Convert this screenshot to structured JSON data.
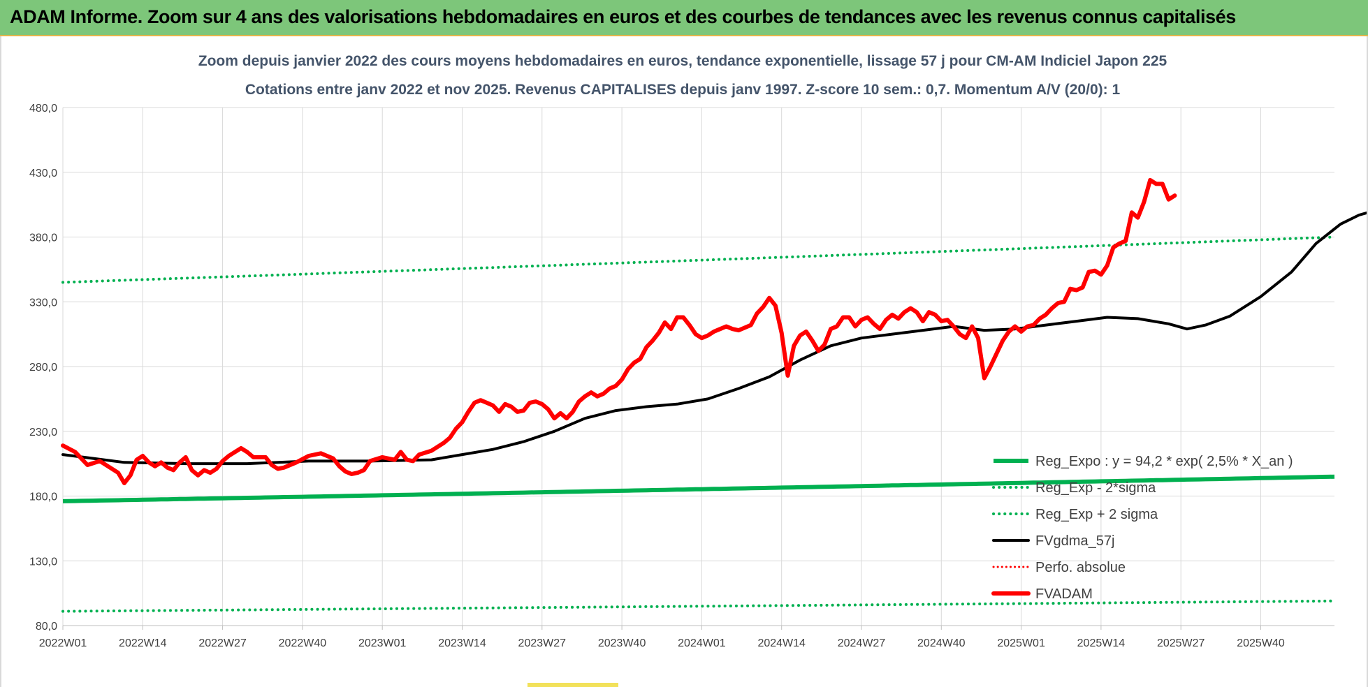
{
  "header": {
    "title": "ADAM Informe. Zoom sur 4 ans des valorisations hebdomadaires en euros et des courbes de tendances avec les revenus connus capitalisés"
  },
  "colors": {
    "banner": "#7dc67a",
    "reg_expo": "#00b050",
    "reg_sigma": "#00b050",
    "fvgdma": "#000000",
    "perfo": "#ff0000",
    "fvadam": "#ff0000",
    "title_text": "#44546a"
  },
  "chart_data": {
    "type": "line",
    "title": "Zoom depuis janvier 2022 des cours moyens hebdomadaires en euros, tendance exponentielle, lissage 57 j pour CM-AM Indiciel Japon 225",
    "subtitle": "Cotations entre janv 2022 et nov 2025. Revenus CAPITALISES depuis janv 1997. Z-score 10 sem.: 0,7. Momentum A/V (20/0): 1",
    "xlabel": "",
    "ylabel": "",
    "ylim": [
      80,
      480
    ],
    "y_ticks": [
      "80,0",
      "130,0",
      "180,0",
      "230,0",
      "280,0",
      "330,0",
      "380,0",
      "430,0",
      "480,0"
    ],
    "x_ticks": [
      "2022W01",
      "2022W14",
      "2022W27",
      "2022W40",
      "2023W01",
      "2023W14",
      "2023W27",
      "2023W40",
      "2024W01",
      "2024W14",
      "2024W27",
      "2024W40",
      "2025W01",
      "2025W14",
      "2025W27",
      "2025W40"
    ],
    "x_range_weeks": [
      0,
      207
    ],
    "grid": true,
    "legend_position": "bottom-right",
    "series": [
      {
        "name": "Reg_Expo : y = 94,2 * exp( 2,5% *  X_an )",
        "style": "solid",
        "color": "#00b050",
        "points": [
          [
            0,
            176
          ],
          [
            207,
            195
          ]
        ]
      },
      {
        "name": "Reg_Exp - 2*sigma",
        "style": "dotted",
        "color": "#00b050",
        "points": [
          [
            0,
            91
          ],
          [
            207,
            99
          ]
        ]
      },
      {
        "name": "Reg_Exp + 2 sigma",
        "style": "dotted",
        "color": "#00b050",
        "points": [
          [
            0,
            345
          ],
          [
            207,
            380
          ]
        ]
      },
      {
        "name": "FVgdma_57j",
        "style": "solid",
        "color": "#000000",
        "points": [
          [
            0,
            212
          ],
          [
            10,
            206
          ],
          [
            20,
            205
          ],
          [
            30,
            205
          ],
          [
            40,
            207
          ],
          [
            50,
            207
          ],
          [
            60,
            208
          ],
          [
            65,
            212
          ],
          [
            70,
            216
          ],
          [
            75,
            222
          ],
          [
            80,
            230
          ],
          [
            85,
            240
          ],
          [
            90,
            246
          ],
          [
            95,
            249
          ],
          [
            100,
            251
          ],
          [
            105,
            255
          ],
          [
            110,
            263
          ],
          [
            115,
            272
          ],
          [
            120,
            285
          ],
          [
            125,
            296
          ],
          [
            130,
            302
          ],
          [
            135,
            305
          ],
          [
            140,
            308
          ],
          [
            145,
            311
          ],
          [
            150,
            308
          ],
          [
            155,
            309
          ],
          [
            160,
            312
          ],
          [
            165,
            315
          ],
          [
            170,
            318
          ],
          [
            175,
            317
          ],
          [
            180,
            313
          ],
          [
            183,
            309
          ],
          [
            186,
            312
          ],
          [
            190,
            319
          ],
          [
            195,
            334
          ],
          [
            200,
            353
          ],
          [
            204,
            375
          ],
          [
            208,
            390
          ],
          [
            211,
            397
          ],
          [
            214,
            401
          ]
        ]
      },
      {
        "name": "Perfo. absolue",
        "style": "dotted",
        "color": "#ff0000",
        "points": []
      },
      {
        "name": "FVADAM",
        "style": "solid",
        "color": "#ff0000",
        "points": [
          [
            0,
            219
          ],
          [
            2,
            214
          ],
          [
            4,
            204
          ],
          [
            6,
            207
          ],
          [
            8,
            201
          ],
          [
            9,
            198
          ],
          [
            10,
            190
          ],
          [
            11,
            196
          ],
          [
            12,
            208
          ],
          [
            13,
            211
          ],
          [
            14,
            206
          ],
          [
            15,
            203
          ],
          [
            16,
            206
          ],
          [
            17,
            202
          ],
          [
            18,
            200
          ],
          [
            19,
            206
          ],
          [
            20,
            210
          ],
          [
            21,
            200
          ],
          [
            22,
            196
          ],
          [
            23,
            200
          ],
          [
            24,
            198
          ],
          [
            25,
            201
          ],
          [
            26,
            207
          ],
          [
            27,
            211
          ],
          [
            29,
            217
          ],
          [
            30,
            214
          ],
          [
            31,
            210
          ],
          [
            33,
            210
          ],
          [
            34,
            204
          ],
          [
            35,
            201
          ],
          [
            36,
            202
          ],
          [
            38,
            206
          ],
          [
            40,
            211
          ],
          [
            42,
            213
          ],
          [
            43,
            211
          ],
          [
            44,
            209
          ],
          [
            45,
            203
          ],
          [
            46,
            199
          ],
          [
            47,
            197
          ],
          [
            48,
            198
          ],
          [
            49,
            200
          ],
          [
            50,
            207
          ],
          [
            52,
            210
          ],
          [
            54,
            208
          ],
          [
            55,
            214
          ],
          [
            56,
            208
          ],
          [
            57,
            207
          ],
          [
            58,
            212
          ],
          [
            60,
            215
          ],
          [
            61,
            218
          ],
          [
            62,
            221
          ],
          [
            63,
            225
          ],
          [
            64,
            232
          ],
          [
            65,
            237
          ],
          [
            66,
            245
          ],
          [
            67,
            252
          ],
          [
            68,
            254
          ],
          [
            69,
            252
          ],
          [
            70,
            250
          ],
          [
            71,
            245
          ],
          [
            72,
            251
          ],
          [
            73,
            249
          ],
          [
            74,
            245
          ],
          [
            75,
            246
          ],
          [
            76,
            252
          ],
          [
            77,
            253
          ],
          [
            78,
            251
          ],
          [
            79,
            247
          ],
          [
            80,
            240
          ],
          [
            81,
            244
          ],
          [
            82,
            240
          ],
          [
            83,
            245
          ],
          [
            84,
            253
          ],
          [
            85,
            257
          ],
          [
            86,
            260
          ],
          [
            87,
            257
          ],
          [
            88,
            259
          ],
          [
            89,
            263
          ],
          [
            90,
            265
          ],
          [
            91,
            270
          ],
          [
            92,
            278
          ],
          [
            93,
            283
          ],
          [
            94,
            286
          ],
          [
            95,
            295
          ],
          [
            96,
            300
          ],
          [
            97,
            306
          ],
          [
            98,
            314
          ],
          [
            99,
            309
          ],
          [
            100,
            318
          ],
          [
            101,
            318
          ],
          [
            102,
            312
          ],
          [
            103,
            305
          ],
          [
            104,
            302
          ],
          [
            105,
            304
          ],
          [
            106,
            307
          ],
          [
            107,
            309
          ],
          [
            108,
            311
          ],
          [
            109,
            309
          ],
          [
            110,
            308
          ],
          [
            111,
            310
          ],
          [
            112,
            312
          ],
          [
            113,
            321
          ],
          [
            114,
            326
          ],
          [
            115,
            333
          ],
          [
            116,
            327
          ],
          [
            117,
            306
          ],
          [
            118,
            273
          ],
          [
            119,
            296
          ],
          [
            120,
            304
          ],
          [
            121,
            307
          ],
          [
            122,
            300
          ],
          [
            123,
            292
          ],
          [
            124,
            297
          ],
          [
            125,
            309
          ],
          [
            126,
            311
          ],
          [
            127,
            318
          ],
          [
            128,
            318
          ],
          [
            129,
            311
          ],
          [
            130,
            316
          ],
          [
            131,
            318
          ],
          [
            132,
            313
          ],
          [
            133,
            309
          ],
          [
            134,
            316
          ],
          [
            135,
            320
          ],
          [
            136,
            317
          ],
          [
            137,
            322
          ],
          [
            138,
            325
          ],
          [
            139,
            322
          ],
          [
            140,
            315
          ],
          [
            141,
            322
          ],
          [
            142,
            320
          ],
          [
            143,
            315
          ],
          [
            144,
            316
          ],
          [
            145,
            311
          ],
          [
            146,
            305
          ],
          [
            147,
            302
          ],
          [
            148,
            311
          ],
          [
            149,
            302
          ],
          [
            150,
            271
          ],
          [
            151,
            280
          ],
          [
            152,
            290
          ],
          [
            153,
            300
          ],
          [
            154,
            307
          ],
          [
            155,
            311
          ],
          [
            156,
            307
          ],
          [
            157,
            311
          ],
          [
            158,
            312
          ],
          [
            159,
            317
          ],
          [
            160,
            320
          ],
          [
            161,
            325
          ],
          [
            162,
            329
          ],
          [
            163,
            330
          ],
          [
            164,
            340
          ],
          [
            165,
            339
          ],
          [
            166,
            341
          ],
          [
            167,
            353
          ],
          [
            168,
            354
          ],
          [
            169,
            351
          ],
          [
            170,
            358
          ],
          [
            171,
            372
          ],
          [
            172,
            375
          ],
          [
            173,
            377
          ],
          [
            174,
            399
          ],
          [
            175,
            395
          ],
          [
            176,
            407
          ],
          [
            177,
            424
          ],
          [
            178,
            421
          ],
          [
            179,
            421
          ],
          [
            180,
            409
          ],
          [
            181,
            412
          ]
        ]
      }
    ]
  }
}
